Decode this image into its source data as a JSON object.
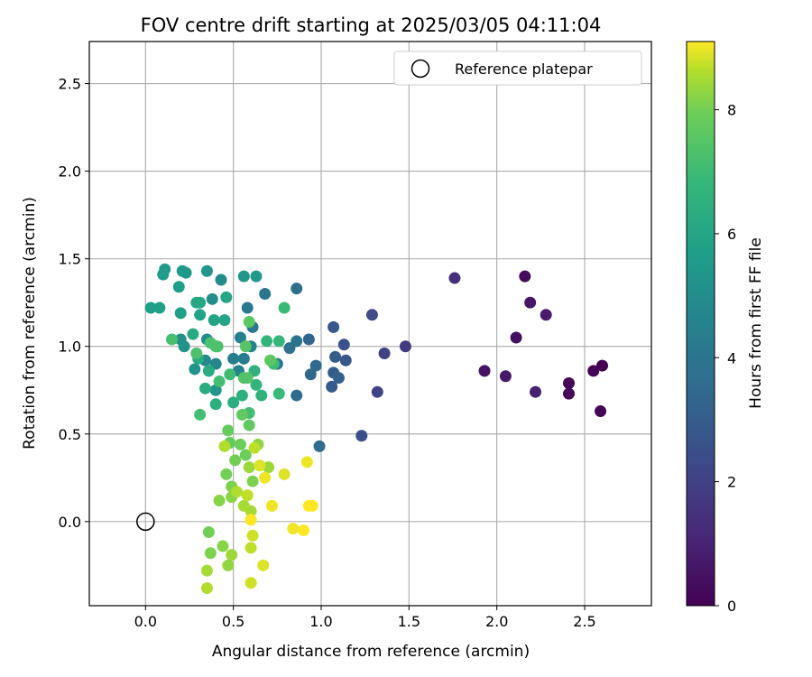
{
  "chart_data": {
    "type": "scatter",
    "title": "FOV centre drift starting at 2025/03/05 04:11:04",
    "xlabel": "Angular distance from reference (arcmin)",
    "ylabel": "Rotation from reference (arcmin)",
    "xlim": [
      -0.32,
      2.88
    ],
    "ylim": [
      -0.48,
      2.74
    ],
    "xticks": [
      0.0,
      0.5,
      1.0,
      1.5,
      2.0,
      2.5
    ],
    "xtick_labels": [
      "0.0",
      "0.5",
      "1.0",
      "1.5",
      "2.0",
      "2.5"
    ],
    "yticks": [
      0.0,
      0.5,
      1.0,
      1.5,
      2.0,
      2.5
    ],
    "ytick_labels": [
      "0.0",
      "0.5",
      "1.0",
      "1.5",
      "2.0",
      "2.5"
    ],
    "grid": true,
    "legend": {
      "placement": "top-right",
      "entries": [
        {
          "label": "Reference platepar",
          "marker": "open-circle"
        }
      ]
    },
    "reference_point": {
      "x": 0.0,
      "y": 0.0
    },
    "colorbar": {
      "label": "Hours from first FF file",
      "colormap": "viridis",
      "min": 0,
      "max": 9.1,
      "ticks": [
        0,
        2,
        4,
        6,
        8
      ],
      "tick_labels": [
        "0",
        "2",
        "4",
        "6",
        "8"
      ]
    },
    "points": [
      [
        2.6,
        0.89,
        0.0
      ],
      [
        2.55,
        0.86,
        0.1
      ],
      [
        2.59,
        0.63,
        0.1
      ],
      [
        2.41,
        0.79,
        0.1
      ],
      [
        2.41,
        0.73,
        0.2
      ],
      [
        2.16,
        1.4,
        0.3
      ],
      [
        2.11,
        1.05,
        0.4
      ],
      [
        1.93,
        0.86,
        0.5
      ],
      [
        2.05,
        0.83,
        0.7
      ],
      [
        2.19,
        1.25,
        0.6
      ],
      [
        2.28,
        1.18,
        0.8
      ],
      [
        2.22,
        0.74,
        0.9
      ],
      [
        1.76,
        1.39,
        1.4
      ],
      [
        1.48,
        1.0,
        1.8
      ],
      [
        1.36,
        0.96,
        2.0
      ],
      [
        1.32,
        0.74,
        2.1
      ],
      [
        1.29,
        1.18,
        2.3
      ],
      [
        1.23,
        0.49,
        2.5
      ],
      [
        1.13,
        1.01,
        2.6
      ],
      [
        1.14,
        0.92,
        2.8
      ],
      [
        1.07,
        1.11,
        2.8
      ],
      [
        1.06,
        0.77,
        2.9
      ],
      [
        1.07,
        0.85,
        3.0
      ],
      [
        1.08,
        0.94,
        3.1
      ],
      [
        1.1,
        0.82,
        3.2
      ],
      [
        0.93,
        1.04,
        3.3
      ],
      [
        0.94,
        0.84,
        3.4
      ],
      [
        0.97,
        0.89,
        3.5
      ],
      [
        0.99,
        0.43,
        3.6
      ],
      [
        0.86,
        0.72,
        3.6
      ],
      [
        0.86,
        1.33,
        3.7
      ],
      [
        0.82,
        0.99,
        3.8
      ],
      [
        0.86,
        1.03,
        3.9
      ],
      [
        0.75,
        0.9,
        4.0
      ],
      [
        0.68,
        1.3,
        4.0
      ],
      [
        0.61,
        1.11,
        4.1
      ],
      [
        0.58,
        1.22,
        4.2
      ],
      [
        0.56,
        0.93,
        4.3
      ],
      [
        0.5,
        0.93,
        4.4
      ],
      [
        0.54,
        1.05,
        4.5
      ],
      [
        0.6,
        1.0,
        4.6
      ],
      [
        0.53,
        0.86,
        4.6
      ],
      [
        0.4,
        0.9,
        4.7
      ],
      [
        0.34,
        0.92,
        4.8
      ],
      [
        0.35,
        1.04,
        4.9
      ],
      [
        0.43,
        1.38,
        4.9
      ],
      [
        0.38,
        1.27,
        5.0
      ],
      [
        0.2,
        1.04,
        5.1
      ],
      [
        0.22,
        1.0,
        5.2
      ],
      [
        0.28,
        0.87,
        5.2
      ],
      [
        0.4,
        0.75,
        5.3
      ],
      [
        0.35,
        1.43,
        5.3
      ],
      [
        0.56,
        1.4,
        5.4
      ],
      [
        0.63,
        1.4,
        5.4
      ],
      [
        0.23,
        1.42,
        5.5
      ],
      [
        0.21,
        1.43,
        5.5
      ],
      [
        0.11,
        1.44,
        5.6
      ],
      [
        0.1,
        1.41,
        5.6
      ],
      [
        0.19,
        1.34,
        5.7
      ],
      [
        0.03,
        1.22,
        5.7
      ],
      [
        0.08,
        1.22,
        5.8
      ],
      [
        0.2,
        1.19,
        5.8
      ],
      [
        0.31,
        1.18,
        5.9
      ],
      [
        0.39,
        1.15,
        5.9
      ],
      [
        0.45,
        1.15,
        6.0
      ],
      [
        0.46,
        1.28,
        6.0
      ],
      [
        0.29,
        1.25,
        6.1
      ],
      [
        0.31,
        1.25,
        6.1
      ],
      [
        0.27,
        1.07,
        6.2
      ],
      [
        0.3,
        0.93,
        6.2
      ],
      [
        0.36,
        0.86,
        6.3
      ],
      [
        0.34,
        0.76,
        6.3
      ],
      [
        0.4,
        0.67,
        6.4
      ],
      [
        0.5,
        0.68,
        6.4
      ],
      [
        0.55,
        0.72,
        6.5
      ],
      [
        0.62,
        0.86,
        6.6
      ],
      [
        0.66,
        0.72,
        6.6
      ],
      [
        0.63,
        0.78,
        6.7
      ],
      [
        0.69,
        1.03,
        6.7
      ],
      [
        0.76,
        1.03,
        6.8
      ],
      [
        0.79,
        1.22,
        6.9
      ],
      [
        0.76,
        0.73,
        6.9
      ],
      [
        0.73,
        0.9,
        7.0
      ],
      [
        0.48,
        0.84,
        7.0
      ],
      [
        0.31,
        0.61,
        7.1
      ],
      [
        0.59,
        0.62,
        7.1
      ],
      [
        0.42,
        0.8,
        7.1
      ],
      [
        0.15,
        1.04,
        7.2
      ],
      [
        0.4,
        1.0,
        7.2
      ],
      [
        0.37,
        1.02,
        7.3
      ],
      [
        0.41,
        1.0,
        7.3
      ],
      [
        0.29,
        0.96,
        7.3
      ],
      [
        0.56,
        0.82,
        7.4
      ],
      [
        0.58,
        0.82,
        7.4
      ],
      [
        0.57,
        1.0,
        7.5
      ],
      [
        0.59,
        1.14,
        7.6
      ],
      [
        0.71,
        0.92,
        7.6
      ],
      [
        0.55,
        0.61,
        7.7
      ],
      [
        0.59,
        0.55,
        7.7
      ],
      [
        0.47,
        0.52,
        7.8
      ],
      [
        0.48,
        0.45,
        7.8
      ],
      [
        0.54,
        0.44,
        7.9
      ],
      [
        0.57,
        0.38,
        7.9
      ],
      [
        0.51,
        0.35,
        8.0
      ],
      [
        0.46,
        0.27,
        8.0
      ],
      [
        0.49,
        0.2,
        8.1
      ],
      [
        0.61,
        0.23,
        8.1
      ],
      [
        0.42,
        0.12,
        8.2
      ],
      [
        0.49,
        0.14,
        8.2
      ],
      [
        0.64,
        0.44,
        8.3
      ],
      [
        0.7,
        0.31,
        8.4
      ],
      [
        0.59,
        0.31,
        8.4
      ],
      [
        0.56,
        0.09,
        8.5
      ],
      [
        0.6,
        0.06,
        8.5
      ],
      [
        0.36,
        -0.06,
        8.0
      ],
      [
        0.37,
        -0.18,
        8.1
      ],
      [
        0.44,
        -0.14,
        8.2
      ],
      [
        0.47,
        -0.25,
        8.3
      ],
      [
        0.49,
        -0.19,
        8.4
      ],
      [
        0.35,
        -0.28,
        8.5
      ],
      [
        0.35,
        -0.38,
        8.6
      ],
      [
        0.6,
        -0.15,
        8.7
      ],
      [
        0.61,
        -0.08,
        8.8
      ],
      [
        0.6,
        -0.35,
        8.8
      ],
      [
        0.67,
        -0.25,
        8.9
      ],
      [
        0.65,
        0.32,
        8.9
      ],
      [
        0.68,
        0.25,
        9.0
      ],
      [
        0.72,
        0.09,
        9.0
      ],
      [
        0.79,
        0.27,
        8.9
      ],
      [
        0.84,
        -0.04,
        9.0
      ],
      [
        0.9,
        -0.05,
        9.1
      ],
      [
        0.92,
        0.34,
        9.0
      ],
      [
        0.93,
        0.09,
        9.1
      ],
      [
        0.95,
        0.09,
        9.1
      ],
      [
        0.6,
        0.01,
        9.1
      ],
      [
        0.52,
        0.17,
        8.6
      ],
      [
        0.58,
        0.15,
        8.7
      ],
      [
        0.45,
        0.43,
        8.6
      ],
      [
        0.62,
        0.42,
        8.7
      ]
    ]
  }
}
